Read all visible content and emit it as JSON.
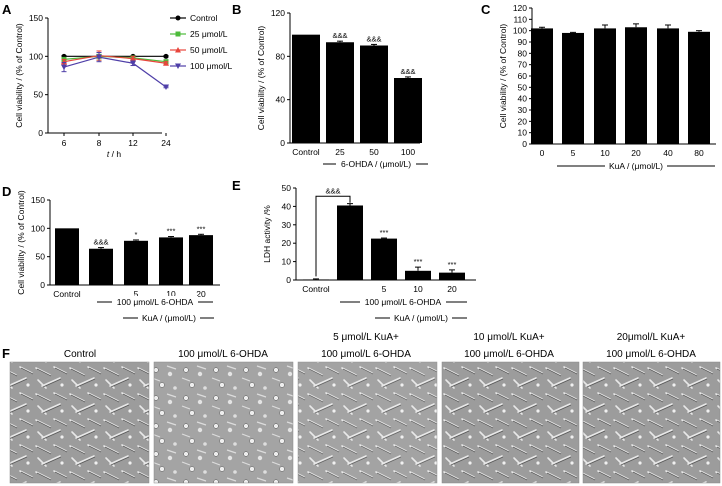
{
  "panels": {
    "a": "A",
    "b": "B",
    "c": "C",
    "d": "D",
    "e": "E",
    "f": "F"
  },
  "chart_data": [
    {
      "id": "A",
      "type": "line",
      "xlabel_italic": "t",
      "xlabel_rest": " / h",
      "ylabel": "Cell viability / (% of Control)",
      "x": [
        6,
        8,
        12,
        24
      ],
      "ylim": [
        0,
        150
      ],
      "yticks": [
        0,
        50,
        100,
        150
      ],
      "legend_position": "right",
      "series": [
        {
          "name": "Control",
          "color": "#000000",
          "marker": "circle",
          "values": [
            100,
            100,
            100,
            100
          ],
          "errors": [
            1,
            1,
            1,
            1
          ]
        },
        {
          "name": "25 μmol/L",
          "color": "#4cbb3a",
          "marker": "square",
          "values": [
            96,
            100,
            98,
            93
          ],
          "errors": [
            2,
            5,
            2,
            2
          ]
        },
        {
          "name": "50 μmol/L",
          "color": "#e8453c",
          "marker": "triangle",
          "values": [
            93,
            101,
            97,
            91
          ],
          "errors": [
            3,
            6,
            3,
            2
          ]
        },
        {
          "name": "100 μmol/L",
          "color": "#4f3fa8",
          "marker": "triangle-down",
          "values": [
            86,
            99,
            91,
            60
          ],
          "errors": [
            6,
            6,
            3,
            1
          ]
        }
      ]
    },
    {
      "id": "B",
      "type": "bar",
      "ylabel": "Cell viability / (% of Control)",
      "categories": [
        "Control",
        "25",
        "50",
        "100"
      ],
      "values": [
        100,
        93,
        90,
        60
      ],
      "errors": [
        0,
        1,
        1,
        1
      ],
      "sig": [
        "",
        "&&&",
        "&&&",
        "&&&"
      ],
      "ylim": [
        0,
        120
      ],
      "yticks": [
        0,
        40,
        80,
        120
      ],
      "group_label": "6-OHDA / (μmol/L)"
    },
    {
      "id": "C",
      "type": "bar",
      "ylabel": "Cell viability / (% of Control)",
      "categories": [
        "0",
        "5",
        "10",
        "20",
        "40",
        "80"
      ],
      "values": [
        102,
        98,
        102,
        103,
        102,
        99
      ],
      "errors": [
        1,
        0.5,
        3,
        3,
        3,
        1
      ],
      "ylim": [
        0,
        120
      ],
      "yticks": [
        0,
        10,
        20,
        30,
        40,
        50,
        60,
        70,
        80,
        90,
        100,
        110,
        120
      ],
      "group_label": "KuA / (μmol/L)"
    },
    {
      "id": "D",
      "type": "bar",
      "ylabel": "Cell viability / (% of Control)",
      "categories": [
        "Control",
        "",
        "5",
        "10",
        "20"
      ],
      "values": [
        100,
        64,
        78,
        84,
        88
      ],
      "errors": [
        0,
        2,
        1.5,
        1.5,
        1.5
      ],
      "sig": [
        "",
        "&&&",
        "*",
        "***",
        "***"
      ],
      "ylim": [
        0,
        150
      ],
      "yticks": [
        0,
        50,
        100,
        150
      ],
      "group_label_1": "100 μmol/L 6-OHDA",
      "group_label_2": "KuA / (μmol/L)"
    },
    {
      "id": "E",
      "type": "bar",
      "ylabel": "LDH activity /%",
      "categories": [
        "Control",
        "",
        "5",
        "10",
        "20"
      ],
      "values": [
        0.3,
        40.5,
        22.5,
        5,
        4
      ],
      "errors": [
        0.3,
        1,
        0.3,
        2,
        1.5
      ],
      "sig": [
        "",
        "",
        "***",
        "***",
        "***"
      ],
      "bracket_sig": "&&&",
      "ylim": [
        0,
        50
      ],
      "yticks": [
        0,
        10,
        20,
        30,
        40,
        50
      ],
      "group_label_1": "100 μmol/L 6-OHDA",
      "group_label_2": "KuA / (μmol/L)"
    }
  ],
  "images": [
    {
      "line1": "",
      "line2": "Control"
    },
    {
      "line1": "",
      "line2": "100 μmol/L 6-OHDA"
    },
    {
      "line1": "5 μmol/L KuA+",
      "line2": "100 μmol/L 6-OHDA"
    },
    {
      "line1": "10 μmol/L KuA+",
      "line2": "100 μmol/L 6-OHDA"
    },
    {
      "line1": "20μmol/L KuA+",
      "line2": "100 μmol/L 6-OHDA"
    }
  ]
}
